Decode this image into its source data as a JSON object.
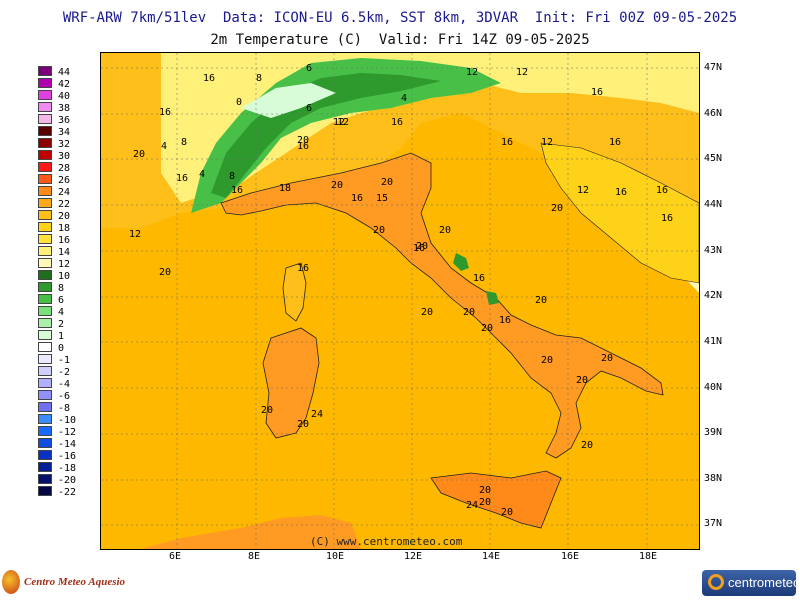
{
  "header": {
    "line1": "WRF-ARW 7km/51lev  Data: ICON-EU 6.5km, SST 8km, 3DVAR  Init: Fri 00Z 09-05-2025",
    "line2": "2m Temperature (C)  Valid: Fri 14Z 09-05-2025"
  },
  "legend": {
    "labels": [
      "44",
      "42",
      "40",
      "38",
      "36",
      "34",
      "32",
      "30",
      "28",
      "26",
      "24",
      "22",
      "20",
      "18",
      "16",
      "14",
      "12",
      "10",
      "8",
      "6",
      "4",
      "2",
      "1",
      "0",
      "-1",
      "-2",
      "-4",
      "-6",
      "-8",
      "-10",
      "-12",
      "-14",
      "-16",
      "-18",
      "-20",
      "-22"
    ],
    "colors": [
      "#7a007a",
      "#b000b0",
      "#e040e0",
      "#f08cf0",
      "#f4b8e8",
      "#5a0000",
      "#8b0000",
      "#c00000",
      "#ff1a1a",
      "#ff5a1a",
      "#ff8a1a",
      "#ffa81a",
      "#ffbf1a",
      "#ffd21a",
      "#ffe23a",
      "#fff07a",
      "#fff8b8",
      "#1e6e1e",
      "#2e9a2e",
      "#48c048",
      "#7ae07a",
      "#aaf0aa",
      "#d8fcd8",
      "#ffffff",
      "#eaeaff",
      "#d0d0ff",
      "#b0b0ff",
      "#9090ff",
      "#7070f0",
      "#3c8cff",
      "#1a6aff",
      "#104de0",
      "#0a32c0",
      "#071f96",
      "#05126c",
      "#030844"
    ]
  },
  "lat_labels": [
    "47N",
    "46N",
    "45N",
    "44N",
    "43N",
    "42N",
    "41N",
    "40N",
    "39N",
    "38N",
    "37N"
  ],
  "lon_labels": [
    "6E",
    "8E",
    "10E",
    "12E",
    "14E",
    "16E",
    "18E"
  ],
  "contour_labels": [
    "16",
    "8",
    "6",
    "12",
    "12",
    "16",
    "0",
    "16",
    "4",
    "8",
    "6",
    "12",
    "4",
    "8",
    "12",
    "4",
    "16",
    "20",
    "16",
    "20",
    "20",
    "16",
    "16",
    "16",
    "12",
    "16",
    "12",
    "16",
    "20",
    "16",
    "16",
    "20",
    "16",
    "18",
    "15",
    "20",
    "16",
    "20",
    "20",
    "16",
    "16",
    "12",
    "20",
    "20",
    "20",
    "20",
    "16",
    "20",
    "20",
    "20",
    "20",
    "20",
    "20",
    "20",
    "24",
    "24",
    "20",
    "20",
    "20"
  ],
  "credit": "(C) www.centrometeo.com",
  "logos": {
    "left": "Centro Meteo Aquesio",
    "right": "centrometeo"
  },
  "colors": {
    "sea": "#ffb800",
    "land_warm": "#ff9a22",
    "alps_green": "#2e9a2e",
    "light_yellow": "#fff07a",
    "header_blue": "#1a1a8c"
  }
}
